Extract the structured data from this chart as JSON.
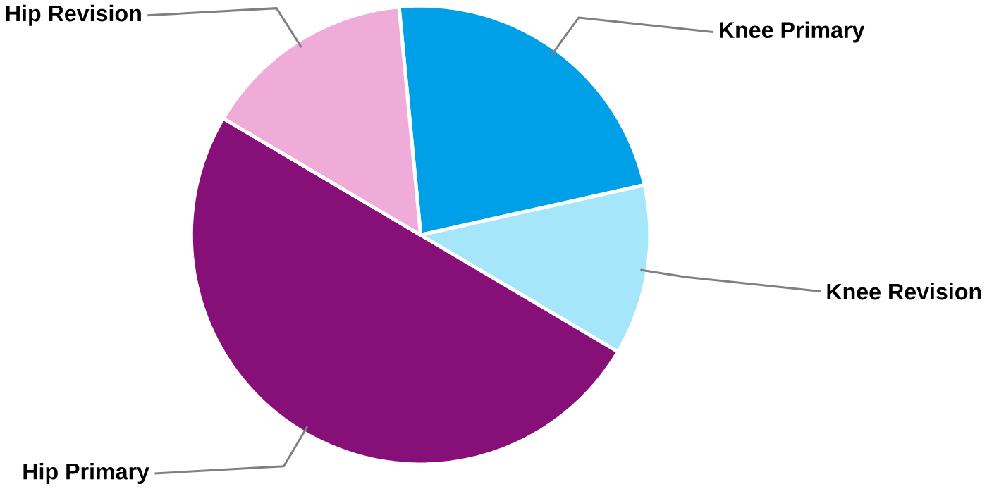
{
  "chart_data": {
    "type": "pie",
    "categories": [
      "Knee Primary",
      "Knee Revision",
      "Hip Primary",
      "Hip Revision"
    ],
    "values": [
      23,
      12,
      50,
      15
    ],
    "colors": [
      "#00a0e9",
      "#a6e6fb",
      "#870f78",
      "#f0acd9"
    ]
  }
}
